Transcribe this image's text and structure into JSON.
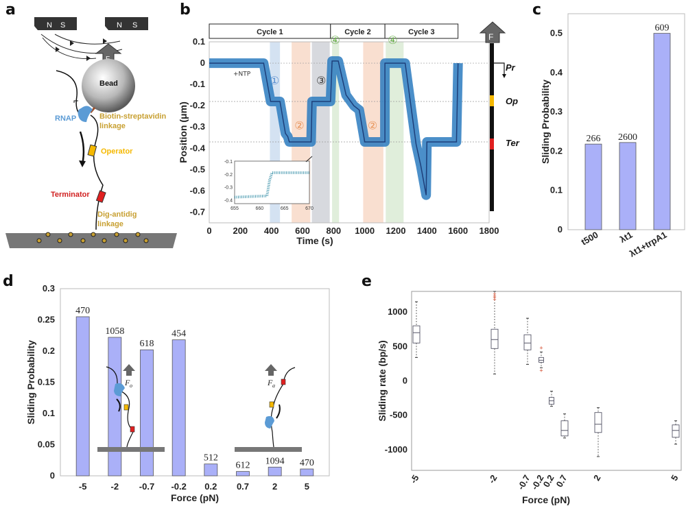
{
  "panels": {
    "a": {
      "label": "a",
      "magnets": [
        {
          "n": "N",
          "s": "S"
        },
        {
          "n": "N",
          "s": "S"
        }
      ],
      "force_label": "F",
      "bead_label": "Bead",
      "rnap_label": "RNAP",
      "biotin_label_1": "Biotin-streptavidin",
      "biotin_label_2": "linkage",
      "operator_label": "Operator",
      "terminator_label": "Terminator",
      "dig_label_1": "Dig-antidig",
      "dig_label_2": "linkage",
      "colors": {
        "rnap": "#5b9bd5",
        "operator": "#f5b800",
        "terminator": "#e02020",
        "label_gold": "#c8a032",
        "surface": "#777777"
      }
    },
    "b": {
      "label": "b"
    },
    "c": {
      "label": "c"
    },
    "d": {
      "label": "d",
      "inset_force_left": "F",
      "inset_force_left_sub": "o",
      "inset_force_right": "F",
      "inset_force_right_sub": "a"
    },
    "e": {
      "label": "e"
    }
  },
  "chart_data": [
    {
      "id": "b",
      "type": "scatter",
      "title": "",
      "xlabel": "Time (s)",
      "ylabel": "Position (μm)",
      "xlim": [
        0,
        1800
      ],
      "ylim": [
        -0.75,
        0.1
      ],
      "xticks": [
        "0",
        "200",
        "400",
        "600",
        "800",
        "1000",
        "1200",
        "1400",
        "1600",
        "1800"
      ],
      "yticks": [
        "0.1",
        "0",
        "-0.1",
        "-0.2",
        "-0.3",
        "-0.4",
        "-0.5",
        "-0.6",
        "-0.7"
      ],
      "cycles": [
        {
          "label": "Cycle 1",
          "start": 0,
          "end": 780
        },
        {
          "label": "Cycle 2",
          "start": 780,
          "end": 1130
        },
        {
          "label": "Cycle 3",
          "start": 1130,
          "end": 1600
        }
      ],
      "reference_lines": [
        0,
        -0.18,
        -0.37
      ],
      "shaded_regions": [
        {
          "start": 390,
          "end": 455,
          "color": "#c5d8ee",
          "tag": "1"
        },
        {
          "start": 530,
          "end": 650,
          "color": "#f7d4c0",
          "tag": "2"
        },
        {
          "start": 660,
          "end": 775,
          "color": "#c9ccd3",
          "tag": "3"
        },
        {
          "start": 790,
          "end": 835,
          "color": "#d6e8cf",
          "tag": "4"
        },
        {
          "start": 990,
          "end": 1120,
          "color": "#f7d4c0",
          "tag": "2"
        },
        {
          "start": 1135,
          "end": 1250,
          "color": "#d6e8cf",
          "tag": "4"
        }
      ],
      "trace": [
        [
          0,
          0
        ],
        [
          200,
          0
        ],
        [
          225,
          0
        ],
        [
          350,
          0
        ],
        [
          395,
          -0.18
        ],
        [
          455,
          -0.18
        ],
        [
          490,
          -0.33
        ],
        [
          505,
          -0.345
        ],
        [
          515,
          -0.37
        ],
        [
          655,
          -0.37
        ],
        [
          661,
          -0.18
        ],
        [
          780,
          -0.18
        ],
        [
          790,
          0.01
        ],
        [
          830,
          0.01
        ],
        [
          880,
          -0.15
        ],
        [
          930,
          -0.2
        ],
        [
          965,
          -0.22
        ],
        [
          1000,
          -0.37
        ],
        [
          1130,
          -0.37
        ],
        [
          1130,
          0
        ],
        [
          1260,
          0
        ],
        [
          1330,
          -0.38
        ],
        [
          1360,
          -0.48
        ],
        [
          1395,
          -0.62
        ],
        [
          1400,
          -0.37
        ],
        [
          1590,
          -0.37
        ],
        [
          1600,
          0
        ]
      ],
      "annotations": [
        {
          "text": "+NTP",
          "x": 210,
          "y": -0.06
        },
        {
          "text": "①",
          "x": 420,
          "y": -0.1,
          "color": "#5b8fd0"
        },
        {
          "text": "②",
          "x": 580,
          "y": -0.31,
          "color": "#e8945a"
        },
        {
          "text": "③",
          "x": 720,
          "y": -0.1,
          "color": "#333333"
        },
        {
          "text": "④",
          "x": 810,
          "y": 0.09,
          "color": "#6ab04c"
        },
        {
          "text": "②",
          "x": 1050,
          "y": -0.31,
          "color": "#e8945a"
        },
        {
          "text": "④",
          "x": 1180,
          "y": 0.09,
          "color": "#6ab04c"
        }
      ],
      "inset": {
        "xlim": [
          655,
          670
        ],
        "ylim": [
          -0.43,
          -0.1
        ],
        "xticks": [
          "655",
          "660",
          "665",
          "670"
        ],
        "yticks": [
          "-0.1",
          "-0.2",
          "-0.3",
          "-0.4"
        ],
        "trace": [
          [
            655,
            -0.38
          ],
          [
            661.5,
            -0.37
          ],
          [
            662,
            -0.25
          ],
          [
            662.5,
            -0.19
          ],
          [
            670,
            -0.19
          ]
        ]
      },
      "dna_bar": {
        "force_label": "F",
        "labels": [
          "Pr",
          "Op",
          "Ter"
        ],
        "colors": {
          "op": "#f5b800",
          "ter": "#e02020"
        }
      }
    },
    {
      "id": "c",
      "type": "bar",
      "title": "",
      "xlabel": "",
      "ylabel": "Sliding Probability",
      "ylim": [
        0,
        0.55
      ],
      "yticks": [
        "0",
        "0.1",
        "0.2",
        "0.3",
        "0.4",
        "0.5"
      ],
      "categories": [
        "t500",
        "λt1",
        "λt1+trpA1"
      ],
      "values": [
        0.218,
        0.222,
        0.5
      ],
      "bar_labels": [
        "266",
        "2600",
        "609"
      ],
      "color": "#aab0f8"
    },
    {
      "id": "d",
      "type": "bar",
      "title": "",
      "xlabel": "Force (pN)",
      "ylabel": "Sliding Probability",
      "ylim": [
        0,
        0.3
      ],
      "yticks": [
        "0",
        "0.05",
        "0.1",
        "0.15",
        "0.2",
        "0.25",
        "0.3"
      ],
      "categories": [
        "-5",
        "-2",
        "-0.7",
        "-0.2",
        "0.2",
        "0.7",
        "2",
        "5"
      ],
      "values": [
        0.255,
        0.222,
        0.202,
        0.218,
        0.019,
        0.007,
        0.014,
        0.011
      ],
      "bar_labels": [
        "470",
        "1058",
        "618",
        "454",
        "512",
        "612",
        "1094",
        "470"
      ],
      "color": "#aab0f8"
    },
    {
      "id": "e",
      "type": "box",
      "title": "",
      "xlabel": "Force (pN)",
      "ylabel": "Sliding rate (bp/s)",
      "xlim": [
        -5.3,
        5.3
      ],
      "ylim": [
        -1300,
        1300
      ],
      "yticks": [
        "1000",
        "500",
        "0",
        "-500",
        "-1000"
      ],
      "xticks": [
        "-5",
        "-2",
        "-0.7",
        "-0.2",
        "0.2",
        "0.7",
        "2",
        "5"
      ],
      "boxes": [
        {
          "x": -5,
          "whisker_low": 340,
          "q1": 550,
          "median": 700,
          "q3": 800,
          "whisker_high": 1150,
          "outliers": []
        },
        {
          "x": -2,
          "whisker_low": 100,
          "q1": 470,
          "median": 600,
          "q3": 750,
          "whisker_high": 1300,
          "outliers": [
            1180,
            1210,
            1230,
            1260
          ]
        },
        {
          "x": -0.7,
          "whisker_low": 240,
          "q1": 450,
          "median": 550,
          "q3": 670,
          "whisker_high": 910,
          "outliers": []
        },
        {
          "x": -0.2,
          "whisker_low": 190,
          "q1": 270,
          "median": 300,
          "q3": 340,
          "whisker_high": 420,
          "outliers": [
            150,
            480
          ]
        },
        {
          "x": 0.2,
          "whisker_low": -370,
          "q1": -340,
          "median": -290,
          "q3": -240,
          "whisker_high": -150,
          "outliers": []
        },
        {
          "x": 0.7,
          "whisker_low": -830,
          "q1": -800,
          "median": -720,
          "q3": -580,
          "whisker_high": -480,
          "outliers": []
        },
        {
          "x": 2,
          "whisker_low": -1100,
          "q1": -750,
          "median": -630,
          "q3": -460,
          "whisker_high": -390,
          "outliers": []
        },
        {
          "x": 5,
          "whisker_low": -920,
          "q1": -820,
          "median": -720,
          "q3": -640,
          "whisker_high": -580,
          "outliers": []
        }
      ],
      "xpos": [
        -5,
        -2,
        -0.7,
        -0.2,
        0.2,
        0.7,
        2,
        5
      ]
    }
  ]
}
